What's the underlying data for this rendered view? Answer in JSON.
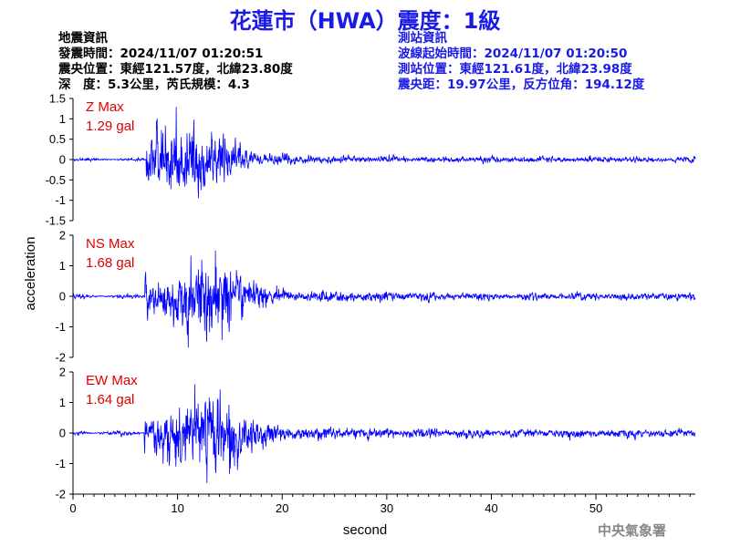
{
  "header": {
    "title": "花蓮市（HWA）震度：1級",
    "quake_heading": "地震資訊",
    "quake_time": "發震時間：2024/11/07 01:20:51",
    "quake_location": "震央位置：東經121.57度，北緯23.80度",
    "quake_depth_mag": "深　度：5.3公里，芮氏規模：4.3",
    "station_heading": "測站資訊",
    "wave_start": "波線起始時間：2024/11/07 01:20:50",
    "station_location": "測站位置：東經121.61度，北緯23.98度",
    "station_dist": "震央距：19.97公里，反方位角：194.12度"
  },
  "footer": {
    "agency": "中央氣象署"
  },
  "colors": {
    "trace": "#0000ff",
    "max_label": "#e00000",
    "title": "#1a1ae6"
  },
  "chart_data": {
    "type": "line",
    "xlabel": "second",
    "ylabel": "acceleration",
    "xlim": [
      0,
      59.5
    ],
    "xticks": [
      0,
      10,
      20,
      30,
      40,
      50
    ],
    "panels": [
      {
        "name": "Z Max",
        "max": "1.29 gal",
        "ylim": [
          -1.5,
          1.5
        ],
        "yticks": [
          -1.5,
          -1,
          -0.5,
          0,
          0.5,
          1,
          1.5
        ],
        "ytick_labels": [
          "-1.5",
          "-1",
          "-0.5",
          "0",
          "0.5",
          "1",
          "1.5"
        ],
        "peak_pos": 1.29,
        "peak_neg": -0.95
      },
      {
        "name": "NS Max",
        "max": "1.68 gal",
        "ylim": [
          -2,
          2
        ],
        "yticks": [
          -2,
          -1,
          0,
          1,
          2
        ],
        "ytick_labels": [
          "-2",
          "-1",
          "0",
          "1",
          "2"
        ],
        "peak_pos": 1.5,
        "peak_neg": -1.68
      },
      {
        "name": "EW Max",
        "max": "1.64 gal",
        "ylim": [
          -2,
          2
        ],
        "yticks": [
          -2,
          -1,
          0,
          1,
          2
        ],
        "ytick_labels": [
          "-2",
          "-1",
          "0",
          "1",
          "2"
        ],
        "peak_pos": 1.6,
        "peak_neg": -1.64
      }
    ]
  }
}
